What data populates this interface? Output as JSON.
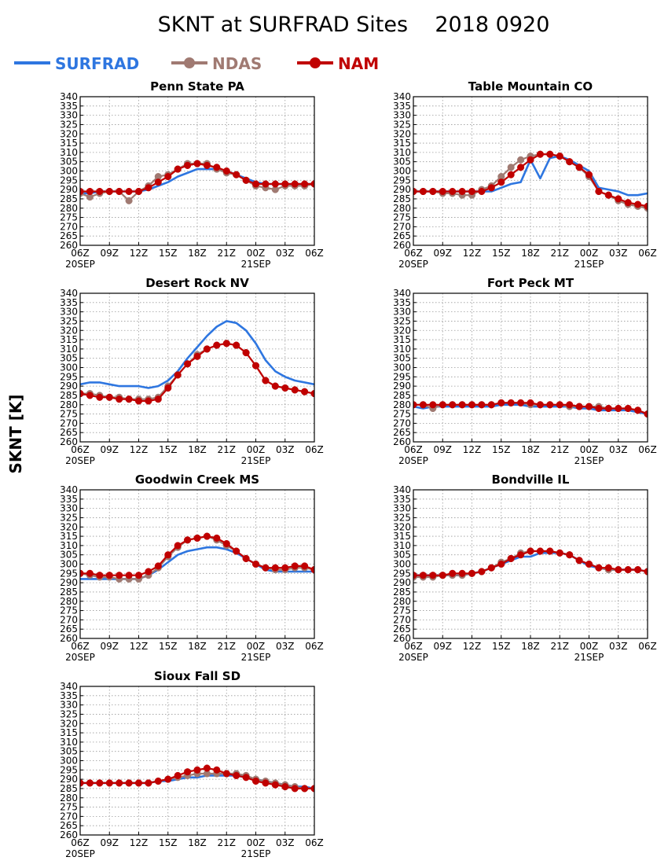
{
  "title": "SKNT at SURFRAD Sites    2018 0920",
  "ylabel": "SKNT [K]",
  "legend": [
    {
      "name": "SURFRAD",
      "color": "#2e76e0",
      "marker": false
    },
    {
      "name": "NDAS",
      "color": "#a07a72",
      "marker": true
    },
    {
      "name": "NAM",
      "color": "#c00000",
      "marker": true
    }
  ],
  "axes": {
    "xticks": [
      "06Z",
      "09Z",
      "12Z",
      "15Z",
      "18Z",
      "21Z",
      "00Z",
      "03Z",
      "06Z"
    ],
    "date_labels": [
      {
        "tick": "06Z",
        "text": "20SEP"
      },
      {
        "tick": "00Z",
        "text": "21SEP"
      }
    ],
    "yticks": [
      260,
      265,
      270,
      275,
      280,
      285,
      290,
      295,
      300,
      305,
      310,
      315,
      320,
      325,
      330,
      335,
      340
    ],
    "ylim": [
      260,
      340
    ],
    "grid": true
  },
  "chart_data": [
    {
      "type": "line",
      "title": "Penn State PA",
      "x": [
        "06Z",
        "07Z",
        "08Z",
        "09Z",
        "10Z",
        "11Z",
        "12Z",
        "13Z",
        "14Z",
        "15Z",
        "16Z",
        "17Z",
        "18Z",
        "19Z",
        "20Z",
        "21Z",
        "22Z",
        "23Z",
        "00Z",
        "01Z",
        "02Z",
        "03Z",
        "04Z",
        "05Z",
        "06Z"
      ],
      "series": [
        {
          "name": "SURFRAD",
          "values": [
            288,
            288,
            289,
            289,
            289,
            289,
            289,
            290,
            292,
            294,
            297,
            299,
            301,
            301,
            301,
            300,
            298,
            296,
            294,
            293,
            293,
            293,
            293,
            293,
            293
          ]
        },
        {
          "name": "NDAS",
          "values": [
            288,
            286,
            288,
            289,
            289,
            284,
            289,
            292,
            297,
            298,
            301,
            304,
            304,
            304,
            301,
            299,
            298,
            295,
            292,
            291,
            290,
            292,
            292,
            292,
            293
          ]
        },
        {
          "name": "NAM",
          "values": [
            289,
            289,
            289,
            289,
            289,
            289,
            289,
            291,
            294,
            297,
            301,
            303,
            304,
            303,
            302,
            300,
            298,
            295,
            293,
            293,
            293,
            293,
            293,
            293,
            293
          ]
        }
      ]
    },
    {
      "type": "line",
      "title": "Table Mountain CO",
      "x": [
        "06Z",
        "07Z",
        "08Z",
        "09Z",
        "10Z",
        "11Z",
        "12Z",
        "13Z",
        "14Z",
        "15Z",
        "16Z",
        "17Z",
        "18Z",
        "19Z",
        "20Z",
        "21Z",
        "22Z",
        "23Z",
        "00Z",
        "01Z",
        "02Z",
        "03Z",
        "04Z",
        "05Z",
        "06Z"
      ],
      "series": [
        {
          "name": "SURFRAD",
          "values": [
            289,
            289,
            289,
            289,
            289,
            289,
            289,
            289,
            289,
            291,
            293,
            294,
            306,
            296,
            307,
            308,
            306,
            303,
            300,
            291,
            290,
            289,
            287,
            287,
            288
          ]
        },
        {
          "name": "NDAS",
          "values": [
            289,
            289,
            289,
            288,
            288,
            287,
            287,
            290,
            292,
            297,
            302,
            306,
            308,
            309,
            309,
            308,
            305,
            302,
            297,
            289,
            287,
            284,
            282,
            281,
            280
          ]
        },
        {
          "name": "NAM",
          "values": [
            289,
            289,
            289,
            289,
            289,
            289,
            289,
            289,
            291,
            294,
            298,
            302,
            306,
            309,
            309,
            308,
            305,
            302,
            298,
            289,
            287,
            285,
            283,
            282,
            281
          ]
        }
      ]
    },
    {
      "type": "line",
      "title": "Desert Rock NV",
      "x": [
        "06Z",
        "07Z",
        "08Z",
        "09Z",
        "10Z",
        "11Z",
        "12Z",
        "13Z",
        "14Z",
        "15Z",
        "16Z",
        "17Z",
        "18Z",
        "19Z",
        "20Z",
        "21Z",
        "22Z",
        "23Z",
        "00Z",
        "01Z",
        "02Z",
        "03Z",
        "04Z",
        "05Z",
        "06Z"
      ],
      "series": [
        {
          "name": "SURFRAD",
          "values": [
            291,
            292,
            292,
            291,
            290,
            290,
            290,
            289,
            290,
            293,
            298,
            305,
            311,
            317,
            322,
            325,
            324,
            320,
            313,
            304,
            298,
            295,
            293,
            292,
            291
          ]
        },
        {
          "name": "NDAS",
          "values": [
            286,
            286,
            285,
            284,
            284,
            283,
            283,
            283,
            284,
            290,
            296,
            302,
            307,
            310,
            312,
            313,
            312,
            308,
            301,
            293,
            290,
            289,
            288,
            287,
            286
          ]
        },
        {
          "name": "NAM",
          "values": [
            286,
            285,
            284,
            284,
            283,
            283,
            282,
            282,
            283,
            289,
            296,
            302,
            306,
            310,
            312,
            313,
            312,
            308,
            301,
            293,
            290,
            289,
            288,
            287,
            286
          ]
        }
      ]
    },
    {
      "type": "line",
      "title": "Fort Peck MT",
      "x": [
        "06Z",
        "07Z",
        "08Z",
        "09Z",
        "10Z",
        "11Z",
        "12Z",
        "13Z",
        "14Z",
        "15Z",
        "16Z",
        "17Z",
        "18Z",
        "19Z",
        "20Z",
        "21Z",
        "22Z",
        "23Z",
        "00Z",
        "01Z",
        "02Z",
        "03Z",
        "04Z",
        "05Z",
        "06Z"
      ],
      "series": [
        {
          "name": "SURFRAD",
          "values": [
            279,
            278,
            279,
            279,
            279,
            279,
            279,
            279,
            279,
            280,
            280,
            280,
            279,
            279,
            279,
            279,
            279,
            278,
            278,
            277,
            277,
            277,
            277,
            276,
            275
          ]
        },
        {
          "name": "NDAS",
          "values": [
            280,
            280,
            278,
            280,
            280,
            280,
            280,
            280,
            280,
            281,
            281,
            281,
            280,
            280,
            280,
            280,
            279,
            279,
            279,
            279,
            278,
            278,
            278,
            277,
            275
          ]
        },
        {
          "name": "NAM",
          "values": [
            280,
            280,
            280,
            280,
            280,
            280,
            280,
            280,
            280,
            281,
            281,
            281,
            281,
            280,
            280,
            280,
            280,
            279,
            279,
            278,
            278,
            278,
            278,
            277,
            275
          ]
        }
      ]
    },
    {
      "type": "line",
      "title": "Goodwin Creek MS",
      "x": [
        "06Z",
        "07Z",
        "08Z",
        "09Z",
        "10Z",
        "11Z",
        "12Z",
        "13Z",
        "14Z",
        "15Z",
        "16Z",
        "17Z",
        "18Z",
        "19Z",
        "20Z",
        "21Z",
        "22Z",
        "23Z",
        "00Z",
        "01Z",
        "02Z",
        "03Z",
        "04Z",
        "05Z",
        "06Z"
      ],
      "series": [
        {
          "name": "SURFRAD",
          "values": [
            292,
            292,
            292,
            292,
            292,
            292,
            292,
            294,
            297,
            301,
            305,
            307,
            308,
            309,
            309,
            308,
            306,
            303,
            300,
            297,
            296,
            296,
            296,
            296,
            296
          ]
        },
        {
          "name": "NDAS",
          "values": [
            295,
            294,
            293,
            293,
            292,
            292,
            292,
            294,
            298,
            304,
            309,
            313,
            314,
            315,
            313,
            310,
            307,
            303,
            300,
            298,
            297,
            297,
            298,
            298,
            297
          ]
        },
        {
          "name": "NAM",
          "values": [
            295,
            295,
            294,
            294,
            294,
            294,
            294,
            296,
            299,
            305,
            310,
            313,
            314,
            315,
            314,
            311,
            307,
            303,
            300,
            298,
            298,
            298,
            299,
            299,
            297
          ]
        }
      ]
    },
    {
      "type": "line",
      "title": "Bondville IL",
      "x": [
        "06Z",
        "07Z",
        "08Z",
        "09Z",
        "10Z",
        "11Z",
        "12Z",
        "13Z",
        "14Z",
        "15Z",
        "16Z",
        "17Z",
        "18Z",
        "19Z",
        "20Z",
        "21Z",
        "22Z",
        "23Z",
        "00Z",
        "01Z",
        "02Z",
        "03Z",
        "04Z",
        "05Z",
        "06Z"
      ],
      "series": [
        {
          "name": "SURFRAD",
          "values": [
            294,
            294,
            294,
            294,
            294,
            294,
            295,
            296,
            298,
            300,
            302,
            304,
            304,
            306,
            306,
            306,
            305,
            302,
            299,
            298,
            297,
            297,
            297,
            297,
            296
          ]
        },
        {
          "name": "NDAS",
          "values": [
            293,
            293,
            293,
            294,
            294,
            294,
            295,
            296,
            298,
            301,
            303,
            306,
            307,
            307,
            307,
            306,
            305,
            302,
            300,
            298,
            297,
            297,
            297,
            297,
            296
          ]
        },
        {
          "name": "NAM",
          "values": [
            294,
            294,
            294,
            294,
            295,
            295,
            295,
            296,
            298,
            300,
            303,
            305,
            307,
            307,
            307,
            306,
            305,
            302,
            300,
            298,
            298,
            297,
            297,
            297,
            296
          ]
        }
      ]
    },
    {
      "type": "line",
      "title": "Sioux Fall SD",
      "x": [
        "06Z",
        "07Z",
        "08Z",
        "09Z",
        "10Z",
        "11Z",
        "12Z",
        "13Z",
        "14Z",
        "15Z",
        "16Z",
        "17Z",
        "18Z",
        "19Z",
        "20Z",
        "21Z",
        "22Z",
        "23Z",
        "00Z",
        "01Z",
        "02Z",
        "03Z",
        "04Z",
        "05Z",
        "06Z"
      ],
      "series": [
        {
          "name": "SURFRAD",
          "values": [
            288,
            288,
            288,
            288,
            288,
            288,
            288,
            288,
            289,
            289,
            290,
            291,
            291,
            292,
            292,
            292,
            292,
            291,
            290,
            289,
            288,
            287,
            286,
            286,
            285
          ]
        },
        {
          "name": "NDAS",
          "values": [
            288,
            288,
            288,
            288,
            288,
            288,
            288,
            288,
            289,
            290,
            291,
            292,
            293,
            293,
            293,
            293,
            293,
            292,
            290,
            289,
            288,
            287,
            286,
            285,
            285
          ]
        },
        {
          "name": "NAM",
          "values": [
            288,
            288,
            288,
            288,
            288,
            288,
            288,
            288,
            289,
            290,
            292,
            294,
            295,
            296,
            295,
            293,
            292,
            291,
            289,
            288,
            287,
            286,
            285,
            285,
            285
          ]
        }
      ]
    }
  ]
}
